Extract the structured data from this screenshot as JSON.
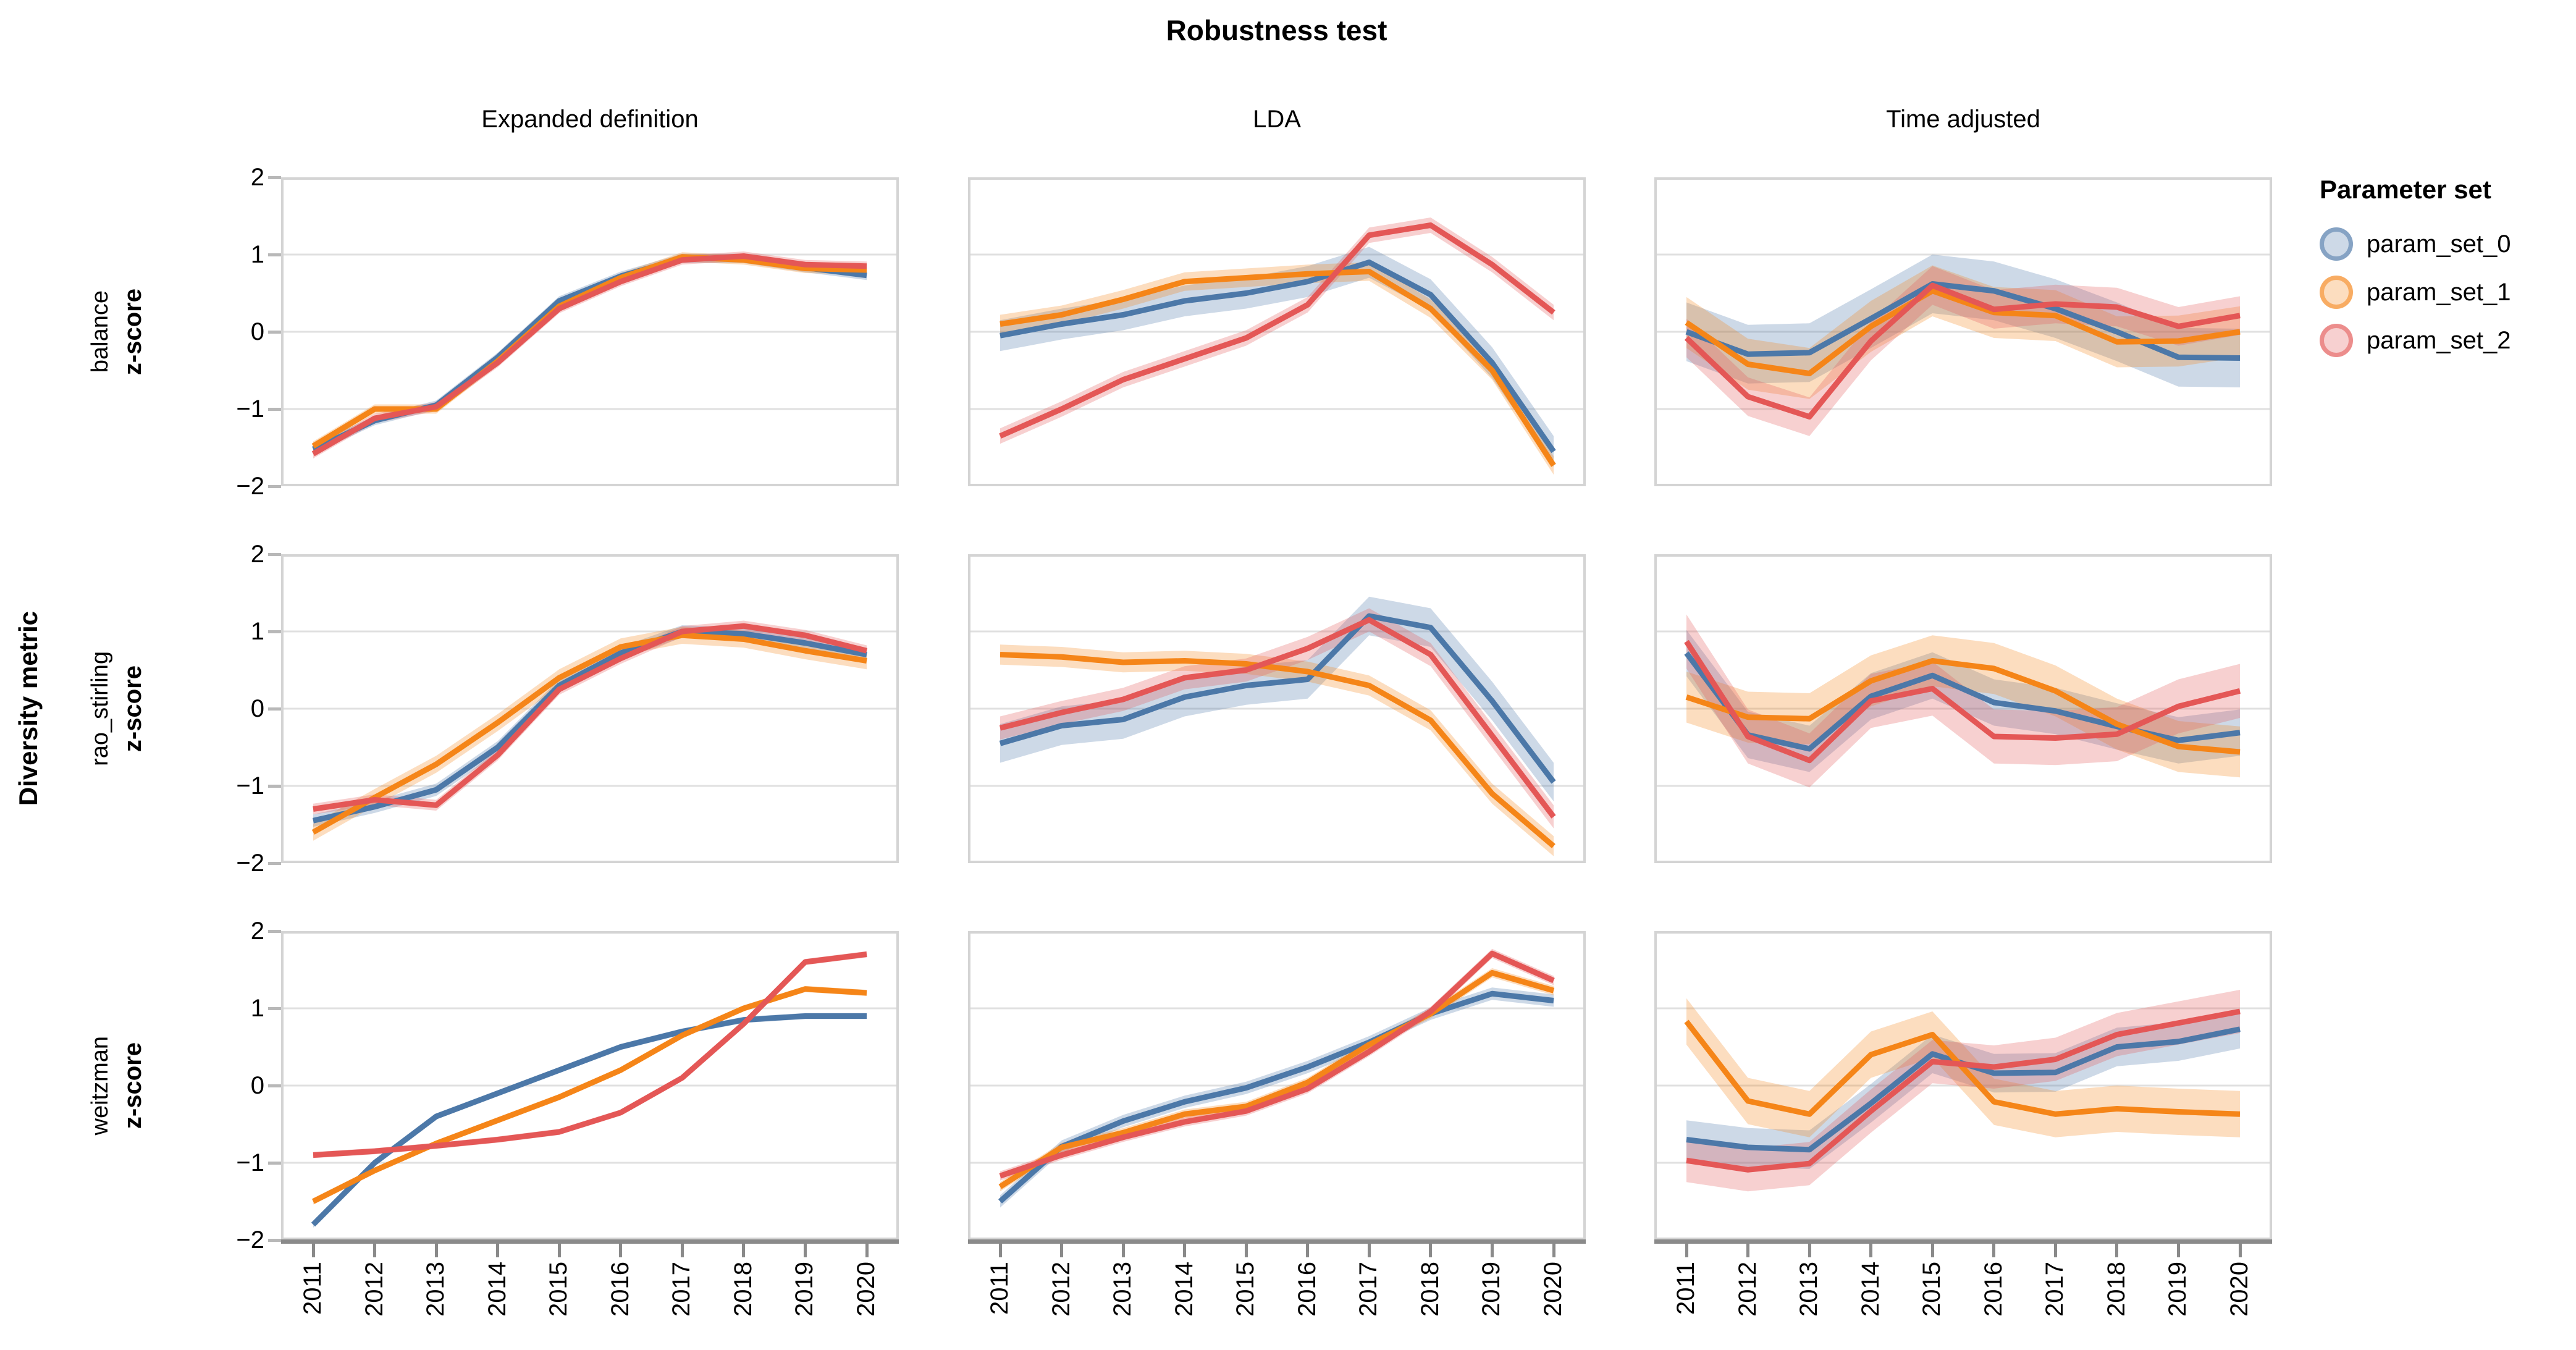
{
  "title": "Robustness test",
  "column_titles": [
    "Expanded definition",
    "LDA",
    "Time adjusted"
  ],
  "row_titles": [
    "balance",
    "rao_stirling",
    "weitzman"
  ],
  "y_axis": {
    "label": "z-score",
    "outer_label": "Diversity metric",
    "ticks": [
      "2",
      "1",
      "0",
      "−1",
      "−2"
    ]
  },
  "x_axis": {
    "ticks": [
      "2011",
      "2012",
      "2013",
      "2014",
      "2015",
      "2016",
      "2017",
      "2018",
      "2019",
      "2020"
    ]
  },
  "legend": {
    "title": "Parameter set",
    "entries": [
      {
        "label": "param_set_0",
        "color": "#4c78a8"
      },
      {
        "label": "param_set_1",
        "color": "#f58518"
      },
      {
        "label": "param_set_2",
        "color": "#e45756"
      }
    ]
  },
  "style": {
    "gridline_color": "#e0e0e0",
    "facet_border_color": "#d4d4d4",
    "axis_color": "#8a8a8a",
    "band_opacity": 0.28,
    "line_width": 9
  },
  "chart_data": {
    "type": "line",
    "x": [
      2011,
      2012,
      2013,
      2014,
      2015,
      2016,
      2017,
      2018,
      2019,
      2020
    ],
    "xlabel": "",
    "ylabel": "z-score",
    "ylim": [
      -2,
      2
    ],
    "y_gridlines": [
      1,
      0,
      -1
    ],
    "legend_position": "top-right",
    "facets": [
      {
        "row": "balance",
        "column": "Expanded definition",
        "series": [
          {
            "name": "param_set_0",
            "values": [
              -1.52,
              -1.15,
              -0.95,
              -0.33,
              0.4,
              0.72,
              0.95,
              0.95,
              0.83,
              0.73
            ],
            "band": 0.06
          },
          {
            "name": "param_set_1",
            "values": [
              -1.48,
              -1.0,
              -1.0,
              -0.38,
              0.33,
              0.7,
              0.97,
              0.93,
              0.82,
              0.8
            ],
            "band": 0.06
          },
          {
            "name": "param_set_2",
            "values": [
              -1.58,
              -1.12,
              -0.97,
              -0.4,
              0.3,
              0.65,
              0.93,
              0.98,
              0.87,
              0.85
            ],
            "band": 0.06
          }
        ]
      },
      {
        "row": "balance",
        "column": "LDA",
        "series": [
          {
            "name": "param_set_0",
            "values": [
              -0.05,
              0.1,
              0.22,
              0.4,
              0.5,
              0.65,
              0.9,
              0.48,
              -0.4,
              -1.55
            ],
            "band": 0.2
          },
          {
            "name": "param_set_1",
            "values": [
              0.1,
              0.22,
              0.42,
              0.65,
              0.7,
              0.75,
              0.78,
              0.3,
              -0.5,
              -1.73
            ],
            "band": 0.12
          },
          {
            "name": "param_set_2",
            "values": [
              -1.35,
              -1.0,
              -0.62,
              -0.35,
              -0.08,
              0.35,
              1.25,
              1.38,
              0.87,
              0.25
            ],
            "band": 0.1
          }
        ]
      },
      {
        "row": "balance",
        "column": "Time adjusted",
        "series": [
          {
            "name": "param_set_0",
            "values": [
              0.0,
              -0.29,
              -0.27,
              0.17,
              0.62,
              0.53,
              0.3,
              0.0,
              -0.33,
              -0.34
            ],
            "band": 0.38
          },
          {
            "name": "param_set_1",
            "values": [
              0.12,
              -0.42,
              -0.54,
              0.07,
              0.53,
              0.25,
              0.21,
              -0.13,
              -0.12,
              0.0
            ],
            "band": 0.33
          },
          {
            "name": "param_set_2",
            "values": [
              -0.08,
              -0.84,
              -1.1,
              -0.12,
              0.6,
              0.29,
              0.36,
              0.32,
              0.07,
              0.21
            ],
            "band": 0.25
          }
        ]
      },
      {
        "row": "rao_stirling",
        "column": "Expanded definition",
        "series": [
          {
            "name": "param_set_0",
            "values": [
              -1.45,
              -1.27,
              -1.05,
              -0.5,
              0.3,
              0.72,
              1.0,
              0.97,
              0.85,
              0.7
            ],
            "band": 0.08
          },
          {
            "name": "param_set_1",
            "values": [
              -1.6,
              -1.15,
              -0.72,
              -0.18,
              0.4,
              0.8,
              0.95,
              0.9,
              0.75,
              0.62
            ],
            "band": 0.11
          },
          {
            "name": "param_set_2",
            "values": [
              -1.3,
              -1.18,
              -1.25,
              -0.6,
              0.25,
              0.65,
              1.0,
              1.07,
              0.95,
              0.75
            ],
            "band": 0.07
          }
        ]
      },
      {
        "row": "rao_stirling",
        "column": "LDA",
        "series": [
          {
            "name": "param_set_0",
            "values": [
              -0.45,
              -0.22,
              -0.14,
              0.15,
              0.3,
              0.38,
              1.2,
              1.05,
              0.1,
              -0.95
            ],
            "band": 0.25
          },
          {
            "name": "param_set_1",
            "values": [
              0.7,
              0.67,
              0.6,
              0.62,
              0.58,
              0.48,
              0.3,
              -0.15,
              -1.1,
              -1.78
            ],
            "band": 0.13
          },
          {
            "name": "param_set_2",
            "values": [
              -0.25,
              -0.05,
              0.12,
              0.4,
              0.5,
              0.78,
              1.15,
              0.7,
              -0.35,
              -1.4
            ],
            "band": 0.15
          }
        ]
      },
      {
        "row": "rao_stirling",
        "column": "Time adjusted",
        "series": [
          {
            "name": "param_set_0",
            "values": [
              0.72,
              -0.34,
              -0.52,
              0.16,
              0.43,
              0.08,
              -0.03,
              -0.23,
              -0.41,
              -0.31
            ],
            "band": 0.3
          },
          {
            "name": "param_set_1",
            "values": [
              0.15,
              -0.11,
              -0.13,
              0.36,
              0.62,
              0.52,
              0.23,
              -0.2,
              -0.49,
              -0.56
            ],
            "band": 0.33
          },
          {
            "name": "param_set_2",
            "values": [
              0.87,
              -0.36,
              -0.67,
              0.1,
              0.26,
              -0.36,
              -0.38,
              -0.33,
              0.03,
              0.23
            ],
            "band": 0.35
          }
        ]
      },
      {
        "row": "weitzman",
        "column": "Expanded definition",
        "series": [
          {
            "name": "param_set_0",
            "values": [
              -1.8,
              -1.0,
              -0.4,
              -0.1,
              0.2,
              0.5,
              0.7,
              0.85,
              0.9,
              0.9
            ],
            "band": 0.04
          },
          {
            "name": "param_set_1",
            "values": [
              -1.5,
              -1.1,
              -0.75,
              -0.45,
              -0.15,
              0.2,
              0.65,
              1.0,
              1.25,
              1.2
            ],
            "band": 0.04
          },
          {
            "name": "param_set_2",
            "values": [
              -0.9,
              -0.85,
              -0.78,
              -0.7,
              -0.6,
              -0.35,
              0.1,
              0.8,
              1.6,
              1.7
            ],
            "band": 0.04
          }
        ]
      },
      {
        "row": "weitzman",
        "column": "LDA",
        "series": [
          {
            "name": "param_set_0",
            "values": [
              -1.5,
              -0.79,
              -0.46,
              -0.21,
              -0.03,
              0.24,
              0.56,
              0.93,
              1.19,
              1.1
            ],
            "band": 0.08
          },
          {
            "name": "param_set_1",
            "values": [
              -1.31,
              -0.8,
              -0.61,
              -0.37,
              -0.27,
              0.04,
              0.53,
              0.93,
              1.46,
              1.23
            ],
            "band": 0.06
          },
          {
            "name": "param_set_2",
            "values": [
              -1.17,
              -0.9,
              -0.67,
              -0.47,
              -0.33,
              -0.04,
              0.44,
              0.96,
              1.71,
              1.36
            ],
            "band": 0.06
          }
        ]
      },
      {
        "row": "weitzman",
        "column": "Time adjusted",
        "series": [
          {
            "name": "param_set_0",
            "values": [
              -0.7,
              -0.8,
              -0.83,
              -0.23,
              0.41,
              0.16,
              0.17,
              0.5,
              0.57,
              0.73
            ],
            "band": 0.25
          },
          {
            "name": "param_set_1",
            "values": [
              0.83,
              -0.2,
              -0.37,
              0.4,
              0.66,
              -0.21,
              -0.37,
              -0.3,
              -0.34,
              -0.37
            ],
            "band": 0.3
          },
          {
            "name": "param_set_2",
            "values": [
              -0.97,
              -1.09,
              -1.01,
              -0.33,
              0.31,
              0.24,
              0.34,
              0.66,
              0.81,
              0.96
            ],
            "band": 0.28
          }
        ]
      }
    ]
  }
}
